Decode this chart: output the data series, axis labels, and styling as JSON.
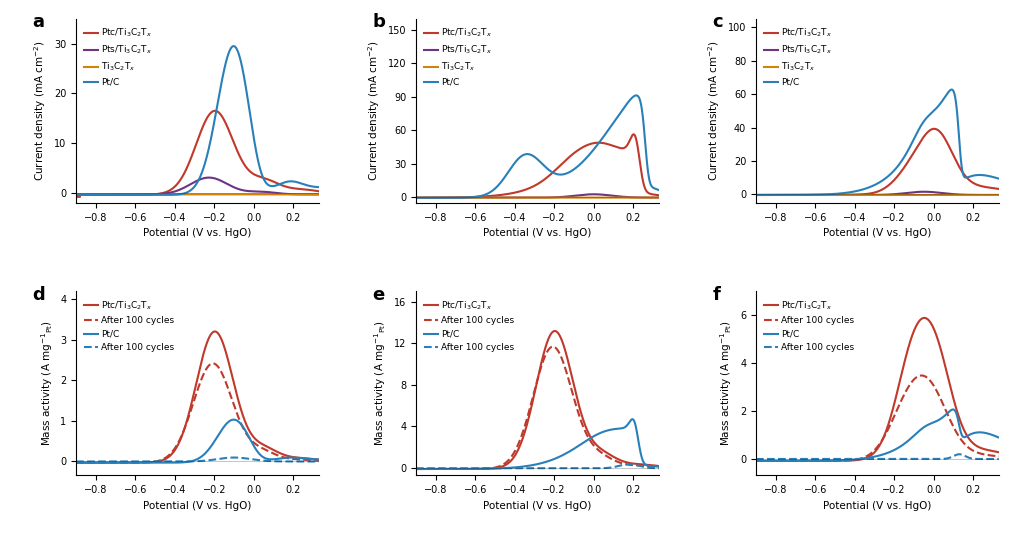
{
  "colors": {
    "red": "#c0392b",
    "purple": "#6c3483",
    "orange": "#d4830a",
    "teal": "#2980b9"
  },
  "panels_top": {
    "a": {
      "ylim": [
        -2,
        35
      ],
      "yticks": [
        0,
        10,
        20,
        30
      ]
    },
    "b": {
      "ylim": [
        -5,
        160
      ],
      "yticks": [
        0,
        30,
        60,
        90,
        120,
        150
      ]
    },
    "c": {
      "ylim": [
        -5,
        105
      ],
      "yticks": [
        0,
        20,
        40,
        60,
        80,
        100
      ]
    }
  },
  "panels_bot": {
    "d": {
      "ylim": [
        -0.35,
        4.2
      ],
      "yticks": [
        0,
        1,
        2,
        3,
        4
      ]
    },
    "e": {
      "ylim": [
        -0.7,
        17
      ],
      "yticks": [
        0,
        4,
        8,
        12,
        16
      ]
    },
    "f": {
      "ylim": [
        -0.7,
        7
      ],
      "yticks": [
        0,
        2,
        4,
        6
      ]
    }
  },
  "xlim": [
    -0.9,
    0.33
  ],
  "xticks": [
    -0.8,
    -0.6,
    -0.4,
    -0.2,
    0.0,
    0.2
  ]
}
